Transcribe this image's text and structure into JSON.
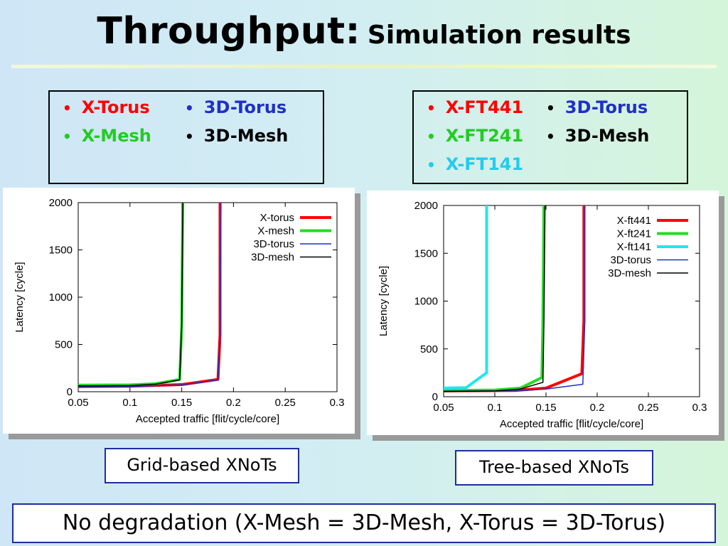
{
  "slide": {
    "title_main": "Throughput:",
    "title_sub": "Simulation results",
    "left_legend": [
      {
        "label": "X-Torus",
        "color": "#ff0000"
      },
      {
        "label": "3D-Torus",
        "color": "#1f30c8"
      },
      {
        "label": "X-Mesh",
        "color": "#22cc22"
      },
      {
        "label": "3D-Mesh",
        "color": "#000000"
      }
    ],
    "right_legend": [
      {
        "label": "X-FT441",
        "color": "#ff0000"
      },
      {
        "label": "3D-Torus",
        "color": "#1f30c8"
      },
      {
        "label": "X-FT241",
        "color": "#22cc22"
      },
      {
        "label": "3D-Mesh",
        "color": "#000000"
      },
      {
        "label": "X-FT141",
        "color": "#22ccee"
      }
    ],
    "left_caption": "Grid-based XNoTs",
    "right_caption": "Tree-based XNoTs",
    "footer": "No degradation (X-Mesh = 3D-Mesh,  X-Torus = 3D-Torus)"
  },
  "chart_data": [
    {
      "type": "line",
      "xlabel": "Accepted traffic [flit/cycle/core]",
      "ylabel": "Latency [cycle]",
      "xlim": [
        0.05,
        0.3
      ],
      "ylim": [
        0,
        2000
      ],
      "xticks": [
        "0.05",
        "0.1",
        "0.15",
        "0.2",
        "0.25",
        "0.3"
      ],
      "yticks": [
        "0",
        "500",
        "1000",
        "1500",
        "2000"
      ],
      "legend_position": "top-right",
      "series": [
        {
          "name": "X-torus",
          "color": "#ff0000",
          "width": "thick",
          "x": [
            0.05,
            0.1,
            0.15,
            0.185,
            0.187,
            0.187
          ],
          "y": [
            55,
            58,
            75,
            130,
            600,
            2000
          ]
        },
        {
          "name": "X-mesh",
          "color": "#22dd22",
          "width": "thick",
          "x": [
            0.05,
            0.1,
            0.125,
            0.148,
            0.15,
            0.151
          ],
          "y": [
            70,
            72,
            85,
            130,
            700,
            2000
          ]
        },
        {
          "name": "3D-torus",
          "color": "#1f30c8",
          "width": "thin",
          "x": [
            0.05,
            0.1,
            0.15,
            0.185,
            0.187,
            0.188
          ],
          "y": [
            52,
            55,
            72,
            125,
            600,
            2000
          ]
        },
        {
          "name": "3D-mesh",
          "color": "#000000",
          "width": "thin",
          "x": [
            0.05,
            0.1,
            0.125,
            0.148,
            0.15,
            0.151
          ],
          "y": [
            62,
            65,
            80,
            125,
            700,
            2000
          ]
        }
      ]
    },
    {
      "type": "line",
      "xlabel": "Accepted traffic [flit/cycle/core]",
      "ylabel": "Latency [cycle]",
      "xlim": [
        0.05,
        0.3
      ],
      "ylim": [
        0,
        2000
      ],
      "xticks": [
        "0.05",
        "0.1",
        "0.15",
        "0.2",
        "0.25",
        "0.3"
      ],
      "yticks": [
        "0",
        "500",
        "1000",
        "1500",
        "2000"
      ],
      "legend_position": "top-right",
      "series": [
        {
          "name": "X-ft441",
          "color": "#ff0000",
          "width": "thick",
          "x": [
            0.05,
            0.12,
            0.15,
            0.185,
            0.187,
            0.187
          ],
          "y": [
            60,
            65,
            90,
            240,
            800,
            2000
          ]
        },
        {
          "name": "X-ft241",
          "color": "#22dd22",
          "width": "thick",
          "x": [
            0.05,
            0.1,
            0.125,
            0.146,
            0.147,
            0.148
          ],
          "y": [
            65,
            70,
            90,
            200,
            800,
            2000
          ]
        },
        {
          "name": "X-ft141",
          "color": "#22e6ee",
          "width": "thick",
          "x": [
            0.05,
            0.072,
            0.092,
            0.092,
            0.092
          ],
          "y": [
            90,
            95,
            250,
            1000,
            2000
          ]
        },
        {
          "name": "3D-torus",
          "color": "#1f30c8",
          "width": "thin",
          "x": [
            0.05,
            0.12,
            0.15,
            0.186,
            0.188,
            0.188
          ],
          "y": [
            58,
            62,
            80,
            130,
            800,
            2000
          ]
        },
        {
          "name": "3D-mesh",
          "color": "#000000",
          "width": "thin",
          "x": [
            0.05,
            0.1,
            0.125,
            0.147,
            0.148,
            0.149
          ],
          "y": [
            55,
            60,
            80,
            150,
            800,
            2000
          ]
        }
      ]
    }
  ]
}
